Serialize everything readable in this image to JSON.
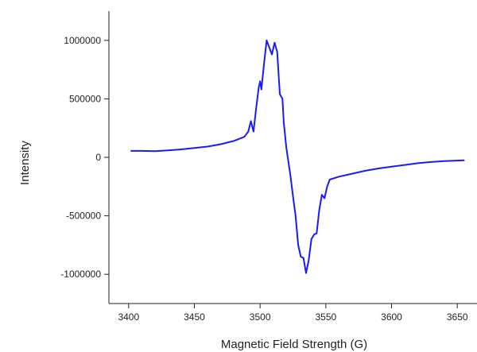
{
  "chart_data": {
    "type": "line",
    "title": "",
    "xlabel": "Magnetic Field Strength (G)",
    "ylabel": "Intensity",
    "xlim": [
      3385,
      3665
    ],
    "ylim": [
      -1250000,
      1250000
    ],
    "x_ticks": [
      3400,
      3450,
      3500,
      3550,
      3600,
      3650
    ],
    "x_tick_labels": [
      "3400",
      "3450",
      "3500",
      "3550",
      "3600",
      "3650"
    ],
    "y_ticks": [
      1000000,
      500000,
      0,
      -500000,
      -1000000
    ],
    "y_tick_labels": [
      "1000000",
      "500000",
      "0",
      "-500000",
      "-1000000"
    ],
    "grid": false,
    "legend": "none",
    "series": [
      {
        "color": "#1a1aff",
        "x": [
          3402,
          3410,
          3420,
          3430,
          3440,
          3450,
          3460,
          3470,
          3480,
          3488,
          3491,
          3493,
          3495,
          3497,
          3499,
          3500,
          3501,
          3503,
          3505,
          3507,
          3509,
          3511,
          3513,
          3515,
          3517,
          3518,
          3520,
          3523,
          3525,
          3527,
          3529,
          3531,
          3533,
          3535,
          3537,
          3539,
          3541,
          3543,
          3545,
          3547,
          3549,
          3551,
          3553,
          3560,
          3570,
          3580,
          3590,
          3600,
          3610,
          3620,
          3630,
          3640,
          3655
        ],
        "y": [
          55000,
          55000,
          52000,
          60000,
          68000,
          80000,
          92000,
          112000,
          140000,
          175000,
          220000,
          310000,
          220000,
          420000,
          600000,
          650000,
          580000,
          800000,
          1000000,
          940000,
          880000,
          980000,
          900000,
          540000,
          500000,
          300000,
          80000,
          -150000,
          -330000,
          -500000,
          -750000,
          -850000,
          -860000,
          -990000,
          -880000,
          -700000,
          -660000,
          -650000,
          -450000,
          -320000,
          -350000,
          -250000,
          -190000,
          -165000,
          -140000,
          -115000,
          -95000,
          -80000,
          -65000,
          -50000,
          -40000,
          -32000,
          -25000
        ]
      }
    ]
  }
}
